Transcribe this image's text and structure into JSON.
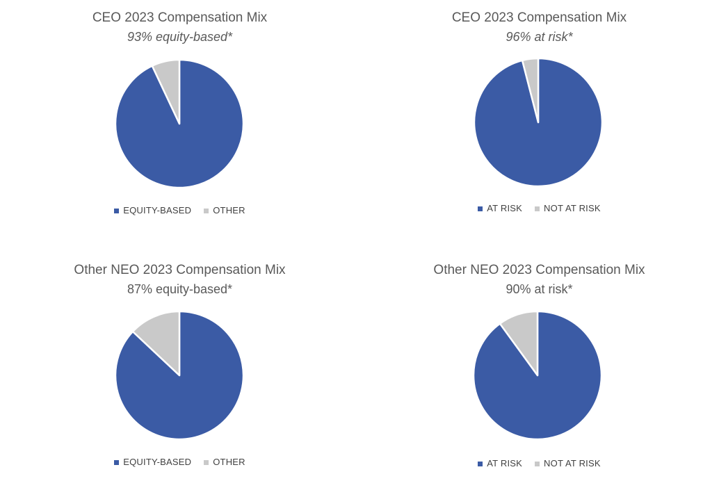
{
  "colors": {
    "primary": "#3B5BA5",
    "secondary": "#C9C9C9"
  },
  "chart_data": [
    {
      "type": "pie",
      "title": "CEO 2023 Compensation Mix",
      "subtitle": "93% equity-based*",
      "subtitle_style": "italic",
      "categories": [
        "EQUITY-BASED",
        "OTHER"
      ],
      "values": [
        93,
        7
      ],
      "colors": [
        "#3B5BA5",
        "#C9C9C9"
      ],
      "legend": "bottom"
    },
    {
      "type": "pie",
      "title": "CEO 2023 Compensation Mix",
      "subtitle": "96% at risk*",
      "subtitle_style": "italic",
      "categories": [
        "AT RISK",
        "NOT AT RISK"
      ],
      "values": [
        96,
        4
      ],
      "colors": [
        "#3B5BA5",
        "#C9C9C9"
      ],
      "legend": "bottom"
    },
    {
      "type": "pie",
      "title": "Other NEO 2023 Compensation Mix",
      "subtitle": "87% equity-based*",
      "subtitle_style": "normal",
      "categories": [
        "EQUITY-BASED",
        "OTHER"
      ],
      "values": [
        87,
        13
      ],
      "colors": [
        "#3B5BA5",
        "#C9C9C9"
      ],
      "legend": "bottom"
    },
    {
      "type": "pie",
      "title": "Other NEO 2023 Compensation Mix",
      "subtitle": "90% at risk*",
      "subtitle_style": "normal",
      "categories": [
        "AT RISK",
        "NOT AT RISK"
      ],
      "values": [
        90,
        10
      ],
      "colors": [
        "#3B5BA5",
        "#C9C9C9"
      ],
      "legend": "bottom"
    }
  ]
}
